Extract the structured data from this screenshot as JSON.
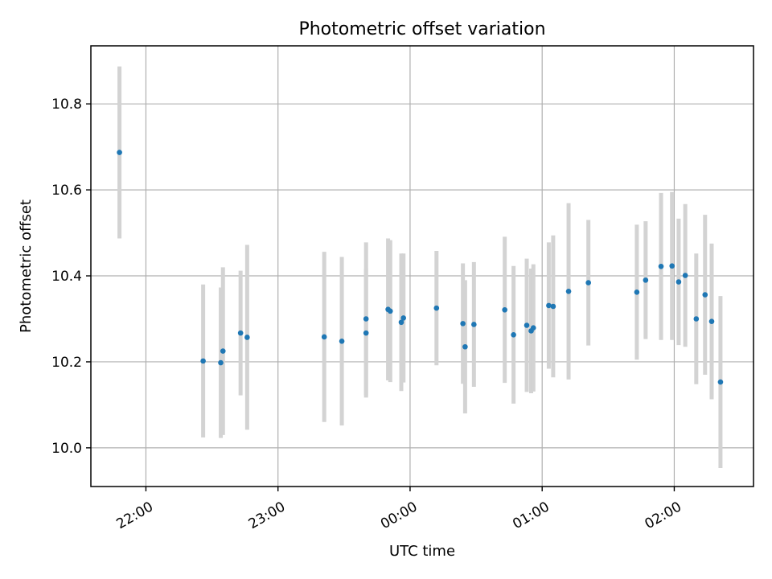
{
  "chart_data": {
    "type": "scatter",
    "title": "Photometric offset variation",
    "xlabel": "UTC time",
    "ylabel": "Photometric offset",
    "grid": true,
    "x_axis_type": "time",
    "xlim": [
      "21:35",
      "02:36"
    ],
    "ylim": [
      9.91,
      10.935
    ],
    "x_ticks": [
      "22:00",
      "23:00",
      "00:00",
      "01:00",
      "02:00"
    ],
    "y_ticks": [
      10.0,
      10.2,
      10.4,
      10.6,
      10.8
    ],
    "y_tick_labels": [
      "10.0",
      "10.2",
      "10.4",
      "10.6",
      "10.8"
    ],
    "marker_color": "#1f77b4",
    "errorbar_color": "#d3d3d3",
    "series": [
      {
        "points": [
          {
            "x": "21:48",
            "y": 10.687,
            "err": 0.2
          },
          {
            "x": "22:26",
            "y": 10.202,
            "err": 0.178
          },
          {
            "x": "22:34",
            "y": 10.198,
            "err": 0.175
          },
          {
            "x": "22:35",
            "y": 10.225,
            "err": 0.195
          },
          {
            "x": "22:43",
            "y": 10.267,
            "err": 0.145
          },
          {
            "x": "22:46",
            "y": 10.257,
            "err": 0.215
          },
          {
            "x": "23:21",
            "y": 10.258,
            "err": 0.198
          },
          {
            "x": "23:29",
            "y": 10.248,
            "err": 0.196
          },
          {
            "x": "23:40",
            "y": 10.3,
            "err": 0.178
          },
          {
            "x": "23:40",
            "y": 10.267,
            "err": 0.15
          },
          {
            "x": "23:50",
            "y": 10.322,
            "err": 0.165
          },
          {
            "x": "23:51",
            "y": 10.318,
            "err": 0.165
          },
          {
            "x": "23:56",
            "y": 10.292,
            "err": 0.16
          },
          {
            "x": "23:57",
            "y": 10.302,
            "err": 0.15
          },
          {
            "x": "00:12",
            "y": 10.325,
            "err": 0.133
          },
          {
            "x": "00:24",
            "y": 10.289,
            "err": 0.14
          },
          {
            "x": "00:25",
            "y": 10.235,
            "err": 0.155
          },
          {
            "x": "00:29",
            "y": 10.287,
            "err": 0.145
          },
          {
            "x": "00:43",
            "y": 10.321,
            "err": 0.17
          },
          {
            "x": "00:47",
            "y": 10.263,
            "err": 0.16
          },
          {
            "x": "00:53",
            "y": 10.285,
            "err": 0.155
          },
          {
            "x": "00:55",
            "y": 10.272,
            "err": 0.145
          },
          {
            "x": "00:56",
            "y": 10.279,
            "err": 0.148
          },
          {
            "x": "01:03",
            "y": 10.331,
            "err": 0.147
          },
          {
            "x": "01:05",
            "y": 10.329,
            "err": 0.165
          },
          {
            "x": "01:12",
            "y": 10.364,
            "err": 0.205
          },
          {
            "x": "01:21",
            "y": 10.384,
            "err": 0.146
          },
          {
            "x": "01:43",
            "y": 10.362,
            "err": 0.157
          },
          {
            "x": "01:47",
            "y": 10.39,
            "err": 0.137
          },
          {
            "x": "01:54",
            "y": 10.422,
            "err": 0.171
          },
          {
            "x": "01:59",
            "y": 10.423,
            "err": 0.172
          },
          {
            "x": "02:02",
            "y": 10.386,
            "err": 0.147
          },
          {
            "x": "02:05",
            "y": 10.401,
            "err": 0.166
          },
          {
            "x": "02:10",
            "y": 10.3,
            "err": 0.152
          },
          {
            "x": "02:14",
            "y": 10.356,
            "err": 0.186
          },
          {
            "x": "02:17",
            "y": 10.294,
            "err": 0.181
          },
          {
            "x": "02:21",
            "y": 10.153,
            "err": 0.2
          }
        ]
      }
    ]
  }
}
